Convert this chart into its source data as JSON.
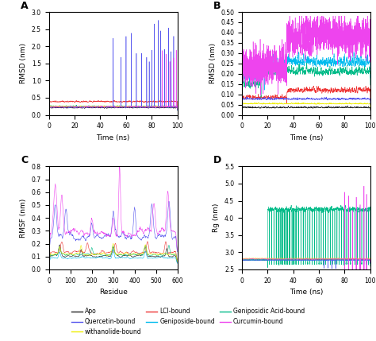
{
  "colors": {
    "apo": "#222222",
    "quercetin": "#5555ee",
    "withanolide": "#eeee00",
    "lci": "#ee3333",
    "geniposide": "#00bbee",
    "geniposidic": "#00bb88",
    "curcumin": "#ee44ee"
  },
  "A": {
    "xlabel": "Time (ns)",
    "ylabel": "RMSD (nm)",
    "xlim": [
      0,
      100
    ],
    "ylim": [
      0,
      3.0
    ]
  },
  "B": {
    "xlabel": "Time (ns)",
    "ylabel": "RMSD (nm)",
    "xlim": [
      0,
      100
    ],
    "ylim": [
      0,
      0.5
    ]
  },
  "C": {
    "xlabel": "Residue",
    "ylabel": "RMSF (nm)",
    "xlim": [
      0,
      600
    ],
    "ylim": [
      0,
      0.8
    ]
  },
  "D": {
    "xlabel": "Time (ns)",
    "ylabel": "Rg (nm)",
    "xlim": [
      0,
      100
    ],
    "ylim": [
      2.5,
      5.5
    ]
  }
}
